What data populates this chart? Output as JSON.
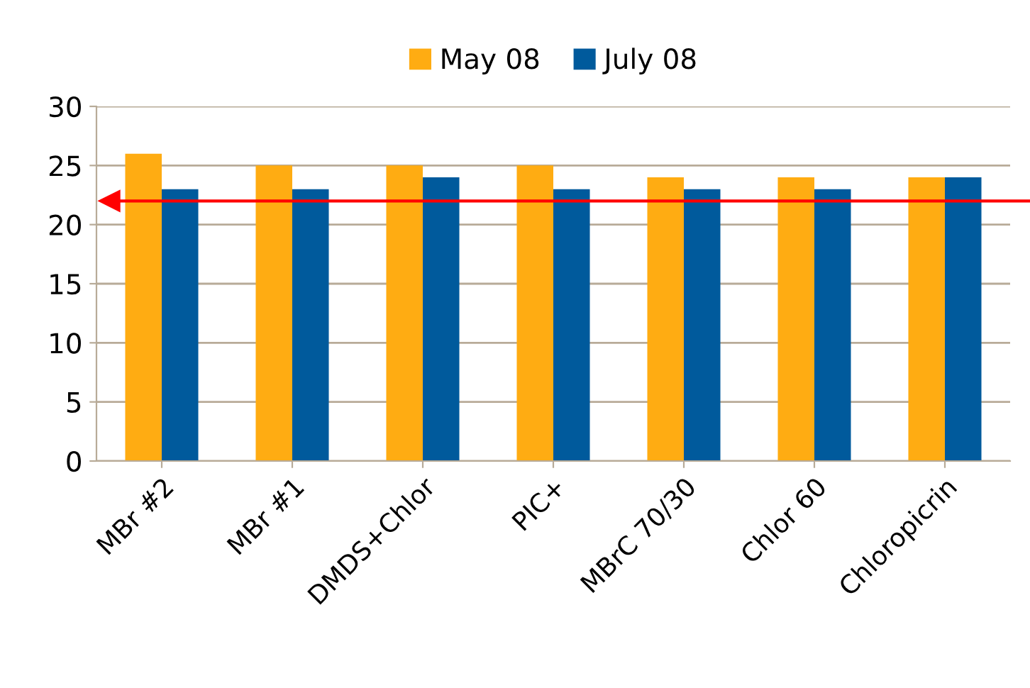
{
  "chart_data": {
    "type": "bar",
    "categories": [
      "MBr #2",
      "MBr #1",
      "DMDS+Chlor",
      "PIC+",
      "MBrC 70/30",
      "Chlor 60",
      "Chloropicrin"
    ],
    "series": [
      {
        "name": "May 08",
        "color": "#ffac12",
        "values": [
          26,
          25,
          25,
          25,
          24,
          24,
          24
        ]
      },
      {
        "name": "July 08",
        "color": "#005a9c",
        "values": [
          23,
          23,
          24,
          23,
          23,
          23,
          24
        ]
      }
    ],
    "ylim": [
      0,
      30
    ],
    "yticks": [
      0,
      5,
      10,
      15,
      20,
      25,
      30
    ],
    "grid": "y",
    "legend": "top",
    "ref_lines": [
      {
        "axis": "y",
        "value": 22,
        "color": "#ff0000"
      }
    ]
  }
}
